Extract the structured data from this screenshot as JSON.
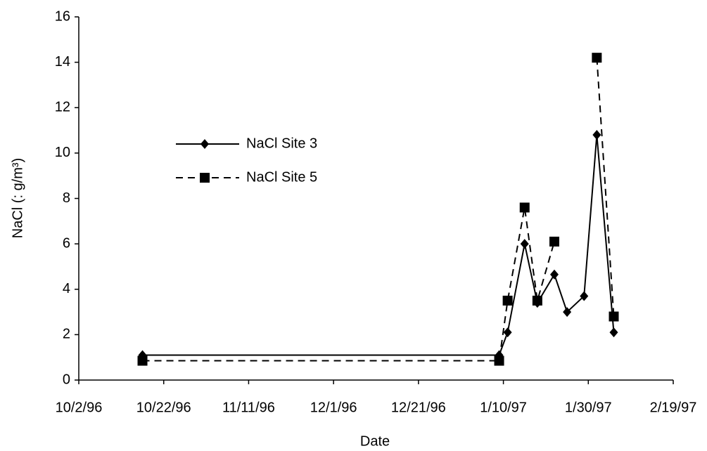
{
  "chart_data": {
    "type": "line",
    "x_label": "Date",
    "y_label": "NaCl (: g/m³)",
    "x": [
      "10/17/96",
      "1/9/97",
      "1/11/97",
      "1/15/97",
      "1/18/97",
      "1/22/97",
      "1/25/97",
      "1/29/97",
      "2/1/97",
      "2/5/97"
    ],
    "series": [
      {
        "name": "NaCl Site 3",
        "color": "#000000",
        "line_style": "solid",
        "marker": "diamond",
        "values": [
          1.1,
          1.1,
          2.1,
          6.0,
          3.4,
          4.65,
          3.0,
          3.7,
          10.8,
          2.1
        ]
      },
      {
        "name": "NaCl Site 5",
        "color": "#000000",
        "line_style": "dashed",
        "marker": "square",
        "values": [
          0.85,
          0.85,
          3.5,
          7.6,
          3.5,
          6.1,
          null,
          null,
          14.2,
          2.8
        ]
      }
    ],
    "xlim": [
      "10/2/96",
      "2/19/97"
    ],
    "xticks": [
      "10/2/96",
      "10/22/96",
      "11/11/96",
      "12/1/96",
      "12/21/96",
      "1/10/97",
      "1/30/97",
      "2/19/97"
    ],
    "ylim": [
      0,
      16
    ],
    "yticks": [
      0,
      2,
      4,
      6,
      8,
      10,
      12,
      14,
      16
    ],
    "grid": false,
    "legend_position": "left"
  }
}
